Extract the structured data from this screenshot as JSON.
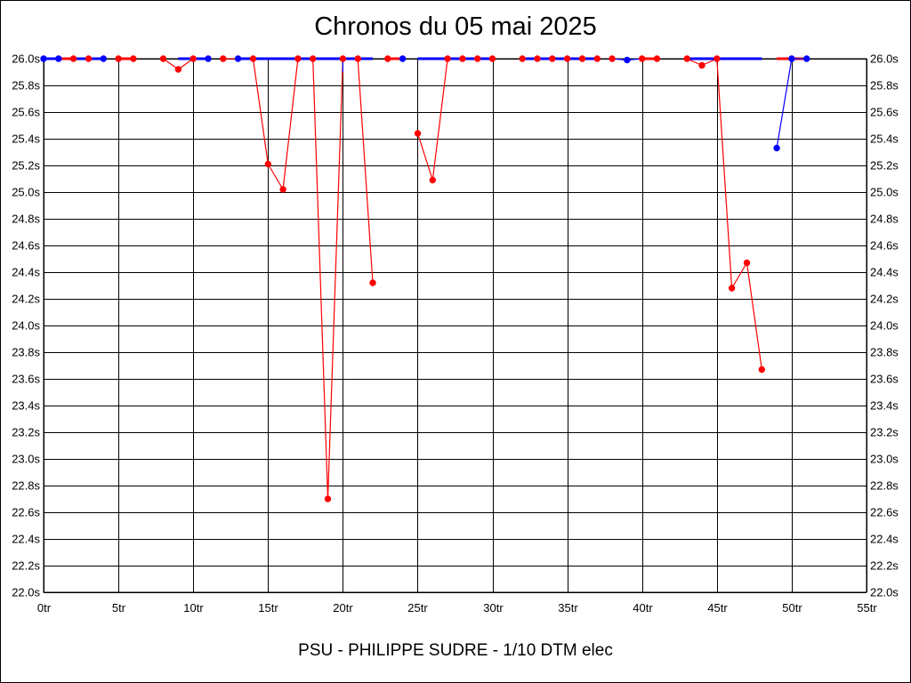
{
  "chart_data": {
    "type": "line",
    "title": "Chronos du 05 mai 2025",
    "subtitle": "PSU - PHILIPPE SUDRE - 1/10 DTM elec",
    "xlabel": "",
    "ylabel": "",
    "xlim": [
      0,
      55
    ],
    "ylim": [
      22.0,
      26.0
    ],
    "x_ticks": [
      "0tr",
      "5tr",
      "10tr",
      "15tr",
      "20tr",
      "25tr",
      "30tr",
      "35tr",
      "40tr",
      "45tr",
      "50tr",
      "55tr"
    ],
    "y_ticks": [
      "22.0s",
      "22.2s",
      "22.4s",
      "22.6s",
      "22.8s",
      "23.0s",
      "23.2s",
      "23.4s",
      "23.6s",
      "23.8s",
      "24.0s",
      "24.2s",
      "24.4s",
      "24.6s",
      "24.8s",
      "25.0s",
      "25.2s",
      "25.4s",
      "25.6s",
      "25.8s",
      "26.0s"
    ],
    "y_ticks_right": true,
    "grid": true,
    "colors": {
      "red": "#ff0000",
      "blue": "#0000ff",
      "grid": "#000000"
    },
    "series": [
      {
        "color": "#ff0000",
        "segments": [
          [
            [
              1,
              26.0
            ],
            [
              2,
              26.0
            ],
            [
              3,
              26.0
            ],
            [
              4,
              26.0
            ]
          ],
          [
            [
              5,
              26.0
            ],
            [
              6,
              26.0
            ]
          ],
          [
            [
              8,
              26.0
            ],
            [
              9,
              25.92
            ],
            [
              10,
              26.0
            ]
          ],
          [
            [
              12,
              26.0
            ],
            [
              13,
              26.0
            ],
            [
              14,
              26.0
            ],
            [
              15,
              25.21
            ],
            [
              16,
              25.02
            ],
            [
              17,
              26.0
            ],
            [
              18,
              26.0
            ],
            [
              19,
              22.7
            ],
            [
              20,
              26.0
            ]
          ],
          [
            [
              21,
              26.0
            ],
            [
              22,
              24.32
            ]
          ],
          [
            [
              23,
              26.0
            ],
            [
              24,
              26.0
            ]
          ],
          [
            [
              25,
              25.44
            ],
            [
              26,
              25.09
            ],
            [
              27,
              26.0
            ],
            [
              28,
              26.0
            ],
            [
              29,
              26.0
            ],
            [
              30,
              26.0
            ]
          ],
          [
            [
              32,
              26.0
            ],
            [
              33,
              26.0
            ],
            [
              34,
              26.0
            ],
            [
              35,
              26.0
            ],
            [
              36,
              26.0
            ],
            [
              37,
              26.0
            ]
          ],
          [
            [
              38,
              26.0
            ],
            [
              39,
              25.99
            ]
          ],
          [
            [
              40,
              26.0
            ],
            [
              41,
              26.0
            ]
          ],
          [
            [
              43,
              26.0
            ],
            [
              44,
              25.95
            ],
            [
              45,
              26.0
            ],
            [
              46,
              24.28
            ],
            [
              47,
              24.47
            ],
            [
              48,
              23.67
            ]
          ],
          [
            [
              49,
              26.0
            ],
            [
              50,
              26.0
            ],
            [
              51,
              26.0
            ]
          ]
        ]
      },
      {
        "color": "#0000ff",
        "segments": [
          [
            [
              0,
              26.0
            ],
            [
              1,
              26.0
            ]
          ],
          [
            [
              2,
              26.0
            ],
            [
              3,
              26.0
            ],
            [
              4,
              26.0
            ]
          ],
          [
            [
              9,
              26.0
            ],
            [
              10,
              26.0
            ],
            [
              11,
              26.0
            ]
          ],
          [
            [
              13,
              26.0
            ],
            [
              14,
              26.0
            ],
            [
              20,
              26.0
            ],
            [
              22,
              26.0
            ]
          ],
          [
            [
              20,
              25.9
            ],
            [
              20,
              26.0
            ]
          ],
          [
            [
              24,
              26.0
            ]
          ],
          [
            [
              25,
              26.0
            ],
            [
              30,
              26.0
            ]
          ],
          [
            [
              32,
              26.0
            ],
            [
              37,
              26.0
            ]
          ],
          [
            [
              38,
              26.0
            ],
            [
              39,
              25.99
            ],
            [
              40,
              26.0
            ]
          ],
          [
            [
              43,
              26.0
            ],
            [
              45,
              26.0
            ],
            [
              48,
              26.0
            ]
          ],
          [
            [
              49,
              25.33
            ],
            [
              50,
              26.0
            ],
            [
              51,
              26.0
            ]
          ]
        ]
      }
    ],
    "markers": [
      {
        "color": "#ff0000",
        "points": [
          [
            2,
            26.0
          ],
          [
            3,
            26.0
          ],
          [
            5,
            26.0
          ],
          [
            6,
            26.0
          ],
          [
            8,
            26.0
          ],
          [
            9,
            25.92
          ],
          [
            10,
            26.0
          ],
          [
            12,
            26.0
          ],
          [
            14,
            26.0
          ],
          [
            15,
            25.21
          ],
          [
            16,
            25.02
          ],
          [
            17,
            26.0
          ],
          [
            18,
            26.0
          ],
          [
            19,
            22.7
          ],
          [
            20,
            26.0
          ],
          [
            21,
            26.0
          ],
          [
            22,
            24.32
          ],
          [
            23,
            26.0
          ],
          [
            25,
            25.44
          ],
          [
            26,
            25.09
          ],
          [
            27,
            26.0
          ],
          [
            28,
            26.0
          ],
          [
            29,
            26.0
          ],
          [
            30,
            26.0
          ],
          [
            32,
            26.0
          ],
          [
            33,
            26.0
          ],
          [
            34,
            26.0
          ],
          [
            35,
            26.0
          ],
          [
            36,
            26.0
          ],
          [
            37,
            26.0
          ],
          [
            38,
            26.0
          ],
          [
            40,
            26.0
          ],
          [
            41,
            26.0
          ],
          [
            43,
            26.0
          ],
          [
            44,
            25.95
          ],
          [
            45,
            26.0
          ],
          [
            46,
            24.28
          ],
          [
            47,
            24.47
          ],
          [
            48,
            23.67
          ]
        ]
      },
      {
        "color": "#0000ff",
        "points": [
          [
            0,
            26.0
          ],
          [
            1,
            26.0
          ],
          [
            4,
            26.0
          ],
          [
            11,
            26.0
          ],
          [
            13,
            26.0
          ],
          [
            24,
            26.0
          ],
          [
            39,
            25.99
          ],
          [
            49,
            25.33
          ],
          [
            50,
            26.0
          ],
          [
            51,
            26.0
          ]
        ]
      }
    ]
  }
}
